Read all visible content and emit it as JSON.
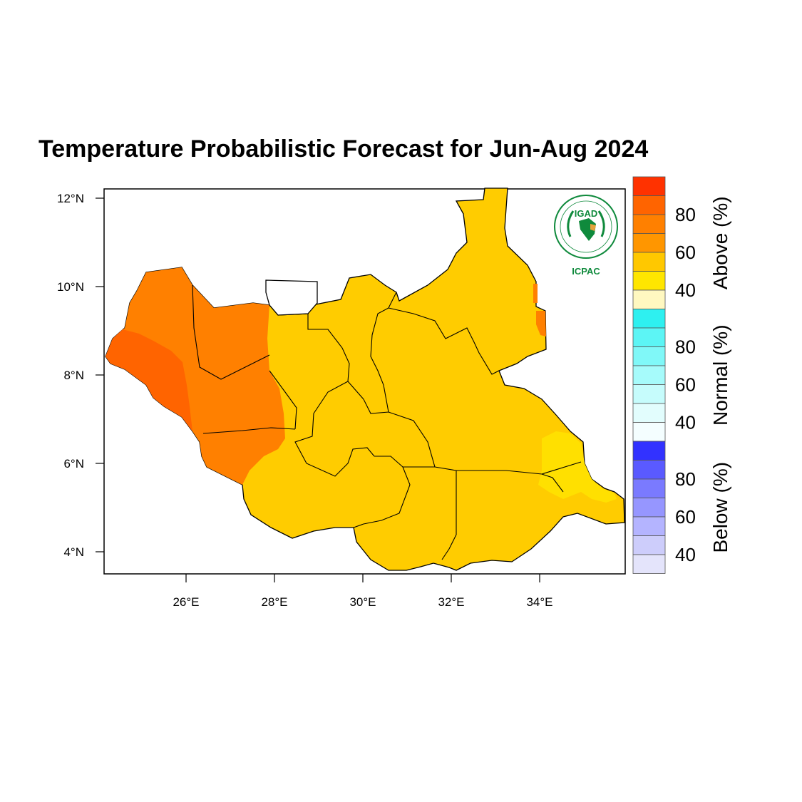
{
  "title": "Temperature Probabilistic Forecast for Jun-Aug 2024",
  "map": {
    "lon_ticks": [
      "26°E",
      "28°E",
      "30°E",
      "32°E",
      "34°E"
    ],
    "lat_ticks": [
      "12°N",
      "10°N",
      "8°N",
      "6°N",
      "4°N"
    ],
    "lon_range": [
      24.2,
      35.9
    ],
    "lat_range": [
      3.45,
      12.2
    ],
    "colors": {
      "above_40_50": "#ffcc00",
      "above_50_60": "#ffe000",
      "above_60_70": "#ff8000",
      "above_70_80": "#ff6400",
      "no_data": "#ffffff",
      "border": "#000000"
    }
  },
  "legend": {
    "categories": [
      {
        "label": "Above (%)",
        "tick_labels": [
          "80",
          "60",
          "40"
        ],
        "colors": [
          "#ff3200",
          "#ff6400",
          "#ff8000",
          "#ff9600",
          "#ffc800",
          "#ffe600",
          "#fff8c0"
        ]
      },
      {
        "label": "Normal (%)",
        "tick_labels": [
          "80",
          "60",
          "40"
        ],
        "colors": [
          "#2ef0f0",
          "#5cf5f5",
          "#80f8f8",
          "#a6fbfb",
          "#c6fcfc",
          "#e2fdfd",
          "#f4feff"
        ]
      },
      {
        "label": "Below (%)",
        "tick_labels": [
          "80",
          "60",
          "40"
        ],
        "colors": [
          "#3232ff",
          "#5a5aff",
          "#7a7aff",
          "#9696ff",
          "#b4b4ff",
          "#cdcdfb",
          "#e4e4fb"
        ]
      }
    ]
  },
  "logo": {
    "top_text": "IGAD",
    "bottom_text": "ICPAC",
    "accent_color": "#0f8a3c"
  }
}
